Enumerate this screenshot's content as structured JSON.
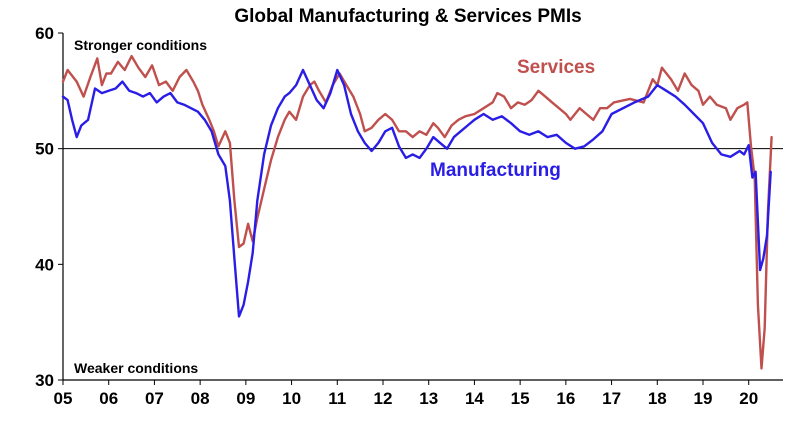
{
  "chart_data": {
    "type": "line",
    "title": "Global Manufacturing & Services PMIs",
    "xlabel": "",
    "ylabel": "",
    "xlim": [
      2005.0,
      2020.75
    ],
    "ylim": [
      30,
      60
    ],
    "yticks": [
      30,
      40,
      50,
      60
    ],
    "xtick_labels": [
      "05",
      "06",
      "07",
      "08",
      "09",
      "10",
      "11",
      "12",
      "13",
      "14",
      "15",
      "16",
      "17",
      "18",
      "19",
      "20"
    ],
    "reference_line": 50,
    "grid": false,
    "legend": "inline labels",
    "annotations": {
      "top": "Stronger conditions",
      "bottom": "Weaker conditions"
    },
    "series": [
      {
        "name": "Services",
        "color": "#c0504d",
        "points": [
          [
            2005.0,
            55.8
          ],
          [
            2005.1,
            56.8
          ],
          [
            2005.3,
            55.8
          ],
          [
            2005.45,
            54.5
          ],
          [
            2005.6,
            56.2
          ],
          [
            2005.75,
            57.8
          ],
          [
            2005.85,
            55.5
          ],
          [
            2005.95,
            56.5
          ],
          [
            2006.05,
            56.5
          ],
          [
            2006.2,
            57.5
          ],
          [
            2006.35,
            56.8
          ],
          [
            2006.5,
            58.0
          ],
          [
            2006.65,
            57.0
          ],
          [
            2006.8,
            56.2
          ],
          [
            2006.95,
            57.2
          ],
          [
            2007.1,
            55.5
          ],
          [
            2007.25,
            55.8
          ],
          [
            2007.4,
            55.0
          ],
          [
            2007.55,
            56.2
          ],
          [
            2007.7,
            56.8
          ],
          [
            2007.85,
            55.8
          ],
          [
            2007.95,
            55.0
          ],
          [
            2008.05,
            53.8
          ],
          [
            2008.2,
            52.5
          ],
          [
            2008.3,
            51.5
          ],
          [
            2008.4,
            50.2
          ],
          [
            2008.55,
            51.5
          ],
          [
            2008.65,
            50.5
          ],
          [
            2008.75,
            45.5
          ],
          [
            2008.85,
            41.5
          ],
          [
            2008.95,
            41.8
          ],
          [
            2009.05,
            43.5
          ],
          [
            2009.15,
            42.0
          ],
          [
            2009.25,
            44.0
          ],
          [
            2009.4,
            46.5
          ],
          [
            2009.55,
            49.0
          ],
          [
            2009.7,
            51.0
          ],
          [
            2009.85,
            52.5
          ],
          [
            2009.95,
            53.2
          ],
          [
            2010.1,
            52.5
          ],
          [
            2010.25,
            54.5
          ],
          [
            2010.4,
            55.5
          ],
          [
            2010.5,
            55.8
          ],
          [
            2010.6,
            55.0
          ],
          [
            2010.75,
            54.0
          ],
          [
            2010.9,
            55.5
          ],
          [
            2011.05,
            56.5
          ],
          [
            2011.2,
            55.5
          ],
          [
            2011.35,
            54.5
          ],
          [
            2011.5,
            53.0
          ],
          [
            2011.6,
            51.5
          ],
          [
            2011.75,
            51.8
          ],
          [
            2011.9,
            52.5
          ],
          [
            2012.05,
            53.0
          ],
          [
            2012.2,
            52.5
          ],
          [
            2012.35,
            51.5
          ],
          [
            2012.5,
            51.5
          ],
          [
            2012.65,
            51.0
          ],
          [
            2012.8,
            51.5
          ],
          [
            2012.95,
            51.2
          ],
          [
            2013.1,
            52.2
          ],
          [
            2013.2,
            51.8
          ],
          [
            2013.35,
            51.0
          ],
          [
            2013.5,
            52.0
          ],
          [
            2013.65,
            52.5
          ],
          [
            2013.8,
            52.8
          ],
          [
            2014.0,
            53.0
          ],
          [
            2014.2,
            53.5
          ],
          [
            2014.4,
            54.0
          ],
          [
            2014.5,
            54.8
          ],
          [
            2014.65,
            54.5
          ],
          [
            2014.8,
            53.5
          ],
          [
            2014.95,
            54.0
          ],
          [
            2015.1,
            53.8
          ],
          [
            2015.25,
            54.2
          ],
          [
            2015.4,
            55.0
          ],
          [
            2015.55,
            54.5
          ],
          [
            2015.7,
            54.0
          ],
          [
            2015.85,
            53.5
          ],
          [
            2016.0,
            53.0
          ],
          [
            2016.1,
            52.5
          ],
          [
            2016.3,
            53.5
          ],
          [
            2016.45,
            53.0
          ],
          [
            2016.6,
            52.5
          ],
          [
            2016.75,
            53.5
          ],
          [
            2016.9,
            53.5
          ],
          [
            2017.05,
            54.0
          ],
          [
            2017.4,
            54.3
          ],
          [
            2017.7,
            54.0
          ],
          [
            2017.9,
            56.0
          ],
          [
            2018.0,
            55.5
          ],
          [
            2018.1,
            57.0
          ],
          [
            2018.3,
            56.0
          ],
          [
            2018.45,
            55.0
          ],
          [
            2018.6,
            56.5
          ],
          [
            2018.75,
            55.5
          ],
          [
            2018.9,
            55.0
          ],
          [
            2019.0,
            53.8
          ],
          [
            2019.15,
            54.5
          ],
          [
            2019.3,
            53.8
          ],
          [
            2019.5,
            53.5
          ],
          [
            2019.6,
            52.5
          ],
          [
            2019.75,
            53.5
          ],
          [
            2019.9,
            53.8
          ],
          [
            2019.97,
            54.0
          ],
          [
            2020.05,
            50.2
          ],
          [
            2020.13,
            47.5
          ],
          [
            2020.2,
            36.5
          ],
          [
            2020.28,
            31.0
          ],
          [
            2020.35,
            34.5
          ],
          [
            2020.42,
            44.5
          ],
          [
            2020.5,
            51.0
          ]
        ]
      },
      {
        "name": "Manufacturing",
        "color": "#2a1ee6",
        "points": [
          [
            2005.0,
            54.5
          ],
          [
            2005.1,
            54.2
          ],
          [
            2005.2,
            52.5
          ],
          [
            2005.3,
            51.0
          ],
          [
            2005.4,
            52.0
          ],
          [
            2005.55,
            52.5
          ],
          [
            2005.7,
            55.2
          ],
          [
            2005.85,
            54.8
          ],
          [
            2006.0,
            55.0
          ],
          [
            2006.15,
            55.2
          ],
          [
            2006.3,
            55.8
          ],
          [
            2006.45,
            55.0
          ],
          [
            2006.6,
            54.8
          ],
          [
            2006.75,
            54.5
          ],
          [
            2006.9,
            54.8
          ],
          [
            2007.05,
            54.0
          ],
          [
            2007.2,
            54.5
          ],
          [
            2007.35,
            54.8
          ],
          [
            2007.5,
            54.0
          ],
          [
            2007.65,
            53.8
          ],
          [
            2007.8,
            53.5
          ],
          [
            2007.95,
            53.2
          ],
          [
            2008.1,
            52.5
          ],
          [
            2008.25,
            51.5
          ],
          [
            2008.4,
            49.5
          ],
          [
            2008.55,
            48.5
          ],
          [
            2008.65,
            45.5
          ],
          [
            2008.75,
            40.5
          ],
          [
            2008.85,
            35.5
          ],
          [
            2008.95,
            36.5
          ],
          [
            2009.05,
            38.5
          ],
          [
            2009.15,
            41.0
          ],
          [
            2009.25,
            45.5
          ],
          [
            2009.4,
            49.5
          ],
          [
            2009.55,
            52.0
          ],
          [
            2009.7,
            53.5
          ],
          [
            2009.85,
            54.5
          ],
          [
            2009.95,
            54.8
          ],
          [
            2010.1,
            55.5
          ],
          [
            2010.25,
            56.8
          ],
          [
            2010.4,
            55.5
          ],
          [
            2010.55,
            54.2
          ],
          [
            2010.7,
            53.5
          ],
          [
            2010.85,
            54.8
          ],
          [
            2011.0,
            56.8
          ],
          [
            2011.15,
            55.5
          ],
          [
            2011.3,
            53.0
          ],
          [
            2011.45,
            51.5
          ],
          [
            2011.6,
            50.5
          ],
          [
            2011.75,
            49.8
          ],
          [
            2011.9,
            50.5
          ],
          [
            2012.05,
            51.5
          ],
          [
            2012.2,
            51.8
          ],
          [
            2012.35,
            50.2
          ],
          [
            2012.5,
            49.2
          ],
          [
            2012.65,
            49.5
          ],
          [
            2012.8,
            49.2
          ],
          [
            2012.95,
            50.0
          ],
          [
            2013.1,
            51.0
          ],
          [
            2013.25,
            50.5
          ],
          [
            2013.4,
            50.0
          ],
          [
            2013.55,
            51.0
          ],
          [
            2013.7,
            51.5
          ],
          [
            2013.85,
            52.0
          ],
          [
            2014.0,
            52.5
          ],
          [
            2014.2,
            53.0
          ],
          [
            2014.4,
            52.5
          ],
          [
            2014.6,
            52.8
          ],
          [
            2014.8,
            52.2
          ],
          [
            2015.0,
            51.5
          ],
          [
            2015.2,
            51.2
          ],
          [
            2015.4,
            51.5
          ],
          [
            2015.6,
            51.0
          ],
          [
            2015.8,
            51.2
          ],
          [
            2016.0,
            50.5
          ],
          [
            2016.2,
            50.0
          ],
          [
            2016.4,
            50.2
          ],
          [
            2016.6,
            50.8
          ],
          [
            2016.8,
            51.5
          ],
          [
            2017.0,
            53.0
          ],
          [
            2017.5,
            54.0
          ],
          [
            2017.8,
            54.5
          ],
          [
            2018.0,
            55.5
          ],
          [
            2018.2,
            55.0
          ],
          [
            2018.4,
            54.5
          ],
          [
            2018.6,
            53.8
          ],
          [
            2018.8,
            53.0
          ],
          [
            2019.0,
            52.2
          ],
          [
            2019.2,
            50.5
          ],
          [
            2019.4,
            49.5
          ],
          [
            2019.6,
            49.3
          ],
          [
            2019.8,
            49.8
          ],
          [
            2019.9,
            49.5
          ],
          [
            2020.0,
            50.3
          ],
          [
            2020.08,
            47.5
          ],
          [
            2020.15,
            48.0
          ],
          [
            2020.25,
            39.5
          ],
          [
            2020.32,
            40.5
          ],
          [
            2020.4,
            42.5
          ],
          [
            2020.48,
            48.0
          ]
        ]
      }
    ]
  }
}
